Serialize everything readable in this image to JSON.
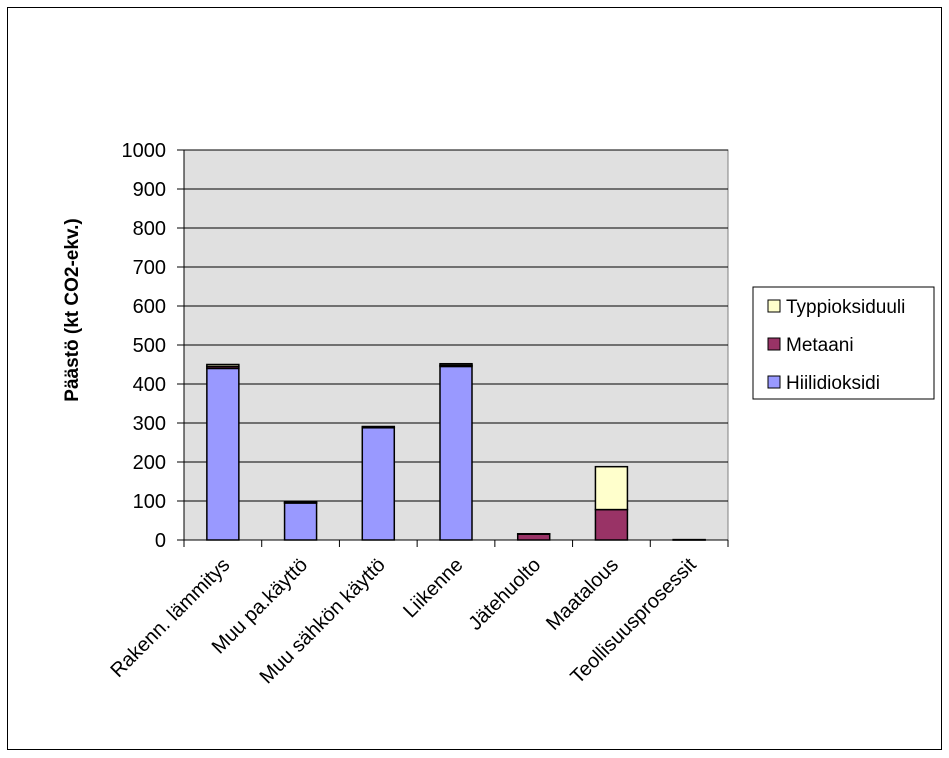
{
  "chart_data": {
    "type": "bar",
    "stacked": true,
    "title": "",
    "xlabel": "",
    "ylabel": "Päästö (kt CO2-ekv.)",
    "ylim": [
      0,
      1000
    ],
    "yticks": [
      0,
      100,
      200,
      300,
      400,
      500,
      600,
      700,
      800,
      900,
      1000
    ],
    "grid": true,
    "legend_position": "right",
    "categories": [
      "Rakenn. lämmitys",
      "Muu pa.käyttö",
      "Muu sähkön käyttö",
      "Liikenne",
      "Jätehuolto",
      "Maatalous",
      "Teollisuusprosessit"
    ],
    "series": [
      {
        "name": "Hiilidioksidi",
        "color": "#9999ff",
        "values": [
          440,
          95,
          288,
          445,
          0,
          0,
          0
        ]
      },
      {
        "name": "Metaani",
        "color": "#993366",
        "values": [
          5,
          1,
          1,
          3,
          15,
          78,
          0
        ]
      },
      {
        "name": "Typpioksiduuli",
        "color": "#ffffcc",
        "values": [
          5,
          1,
          2,
          4,
          1,
          110,
          1
        ]
      }
    ],
    "plot_background": "#e0e0e0"
  }
}
